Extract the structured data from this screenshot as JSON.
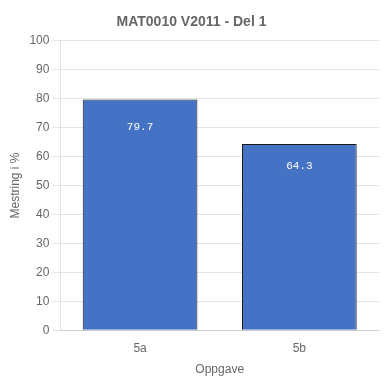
{
  "chart_data": {
    "type": "bar",
    "title": "MAT0010 V2011 - Del 1",
    "categories": [
      "5a",
      "5b"
    ],
    "values": [
      79.7,
      64.3
    ],
    "color": "#4472C4",
    "xlabel": "Oppgave",
    "ylabel": "Mestring i %",
    "ylim": [
      0,
      100
    ],
    "yticks": [
      0,
      10,
      20,
      30,
      40,
      50,
      60,
      70,
      80,
      90,
      100
    ],
    "grid": true,
    "data_labels": true
  }
}
